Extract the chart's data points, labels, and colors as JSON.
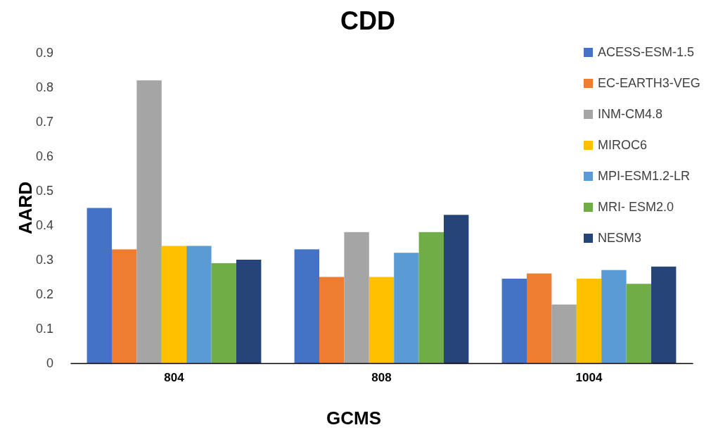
{
  "chart_data": {
    "type": "bar",
    "title": "CDD",
    "xlabel": "GCMS",
    "ylabel": "AARD",
    "categories": [
      "804",
      "808",
      "1004"
    ],
    "series": [
      {
        "name": "ACESS-ESM-1.5",
        "color": "#4472c4",
        "values": [
          0.45,
          0.33,
          0.245
        ]
      },
      {
        "name": "EC-EARTH3-VEG",
        "color": "#ed7d31",
        "values": [
          0.33,
          0.25,
          0.26
        ]
      },
      {
        "name": "INM-CM4.8",
        "color": "#a5a5a5",
        "values": [
          0.82,
          0.38,
          0.17
        ]
      },
      {
        "name": "MIROC6",
        "color": "#ffc000",
        "values": [
          0.34,
          0.25,
          0.245
        ]
      },
      {
        "name": "MPI-ESM1.2-LR",
        "color": "#5b9bd5",
        "values": [
          0.34,
          0.32,
          0.27
        ]
      },
      {
        "name": "MRI- ESM2.0",
        "color": "#70ad47",
        "values": [
          0.29,
          0.38,
          0.23
        ]
      },
      {
        "name": "NESM3",
        "color": "#264478",
        "values": [
          0.3,
          0.43,
          0.28
        ]
      }
    ],
    "ylim": [
      0,
      0.9
    ],
    "yticks": [
      0,
      0.1,
      0.2,
      0.3,
      0.4,
      0.5,
      0.6,
      0.7,
      0.8,
      0.9
    ],
    "grid": false,
    "legend": "top right"
  }
}
